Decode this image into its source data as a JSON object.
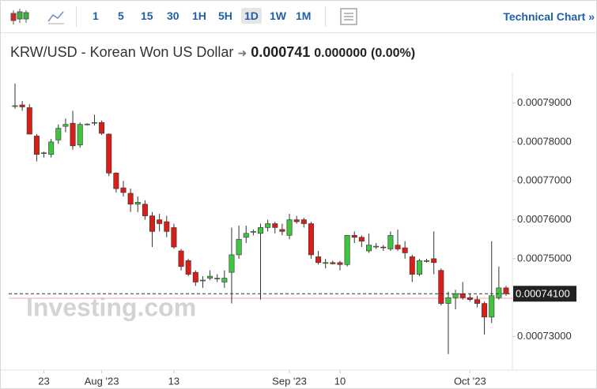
{
  "toolbar": {
    "intervals": [
      "1",
      "5",
      "15",
      "30",
      "1H",
      "5H",
      "1D",
      "1W",
      "1M"
    ],
    "technical_chart": "Technical Chart »"
  },
  "header": {
    "instrument": "KRW/USD - Korean Won US Dollar",
    "price": "0.000741",
    "change": "0.000000",
    "change_percent": "(0.00%)"
  },
  "chart_data": {
    "type": "candlestick",
    "watermark": "Investing.com",
    "categories": [
      null,
      null,
      null,
      null,
      "23",
      null,
      null,
      null,
      null,
      null,
      null,
      null,
      "Aug '23",
      null,
      null,
      null,
      null,
      null,
      null,
      null,
      null,
      null,
      "13",
      null,
      null,
      null,
      null,
      null,
      null,
      null,
      null,
      null,
      null,
      null,
      null,
      null,
      null,
      null,
      "Sep '23",
      null,
      null,
      null,
      null,
      null,
      null,
      "10",
      null,
      null,
      null,
      null,
      null,
      null,
      null,
      null,
      null,
      null,
      null,
      null,
      null,
      null,
      null,
      null,
      null,
      "Oct '23",
      null,
      null,
      null,
      null,
      null
    ],
    "open": [
      0.0007893,
      0.0007895,
      0.0007888,
      0.0007815,
      0.000777,
      0.0007768,
      0.0007805,
      0.000784,
      0.0007848,
      0.0007792,
      0.0007846,
      0.0007848,
      0.000785,
      0.000782,
      0.000772,
      0.0007682,
      0.0007668,
      0.000764,
      0.000764,
      0.000761,
      0.00076,
      0.0007595,
      0.000758,
      0.000752,
      0.0007495,
      0.0007465,
      0.0007445,
      0.000745,
      0.000745,
      0.000744,
      0.0007465,
      0.000751,
      0.0007555,
      0.000757,
      0.0007565,
      0.000758,
      0.000759,
      0.0007575,
      0.000756,
      0.00076,
      0.00076,
      0.000759,
      0.0007505,
      0.0007488,
      0.000749,
      0.000749,
      0.0007485,
      0.000756,
      0.0007555,
      0.000752,
      0.000753,
      0.000753,
      0.0007525,
      0.0007535,
      0.0007528,
      0.0007505,
      0.000746,
      0.0007495,
      0.00075,
      0.000747,
      0.0007385,
      0.00074,
      0.000741,
      0.00074,
      0.0007395,
      0.0007385,
      0.000735,
      0.00074,
      0.0007425
    ],
    "high": [
      0.000795,
      0.0007905,
      0.0007897,
      0.000782,
      0.0007775,
      0.0007808,
      0.0007845,
      0.000786,
      0.000788,
      0.000785,
      0.0007848,
      0.000787,
      0.0007855,
      0.0007822,
      0.0007722,
      0.00077,
      0.000768,
      0.000766,
      0.000765,
      0.000762,
      0.0007615,
      0.000761,
      0.000759,
      0.0007525,
      0.00075,
      0.000747,
      0.0007455,
      0.000747,
      0.000746,
      0.000747,
      0.000758,
      0.0007585,
      0.0007585,
      0.0007575,
      0.000759,
      0.00076,
      0.0007595,
      0.000759,
      0.0007615,
      0.000761,
      0.0007605,
      0.0007595,
      0.000752,
      0.00075,
      0.0007495,
      0.0007495,
      0.000756,
      0.000757,
      0.000756,
      0.0007565,
      0.000754,
      0.0007535,
      0.000757,
      0.0007575,
      0.0007545,
      0.000751,
      0.00075,
      0.00075,
      0.000757,
      0.0007475,
      0.0007415,
      0.000742,
      0.000744,
      0.000741,
      0.0007405,
      0.000739,
      0.0007545,
      0.000748,
      0.000743
    ],
    "low": [
      0.0007885,
      0.000788,
      0.0007825,
      0.000775,
      0.000776,
      0.000776,
      0.0007795,
      0.0007825,
      0.000778,
      0.0007785,
      0.0007842,
      0.0007842,
      0.0007818,
      0.0007712,
      0.000767,
      0.000766,
      0.000762,
      0.000762,
      0.00076,
      0.000753,
      0.000757,
      0.0007555,
      0.0007525,
      0.000747,
      0.0007455,
      0.000743,
      0.0007425,
      0.0007445,
      0.000744,
      0.0007425,
      0.0007385,
      0.00075,
      0.000754,
      0.000756,
      0.0007395,
      0.000757,
      0.0007565,
      0.000756,
      0.000755,
      0.000759,
      0.000758,
      0.00075,
      0.0007485,
      0.0007475,
      0.0007485,
      0.000747,
      0.000748,
      0.000754,
      0.000753,
      0.0007515,
      0.0007525,
      0.000752,
      0.000752,
      0.000752,
      0.00075,
      0.000744,
      0.0007455,
      0.000749,
      0.000746,
      0.000738,
      0.0007255,
      0.000737,
      0.0007395,
      0.000739,
      0.0007375,
      0.0007305,
      0.0007335,
      0.0007395,
      0.0007405
    ],
    "close": [
      0.0007893,
      0.000789,
      0.000782,
      0.0007768,
      0.0007772,
      0.00078,
      0.0007835,
      0.0007845,
      0.000779,
      0.0007845,
      0.0007846,
      0.000785,
      0.0007822,
      0.000772,
      0.000768,
      0.000767,
      0.000764,
      0.0007645,
      0.000761,
      0.000757,
      0.000759,
      0.000757,
      0.000753,
      0.000748,
      0.000746,
      0.000744,
      0.0007445,
      0.0007455,
      0.000745,
      0.000745,
      0.000751,
      0.000755,
      0.0007565,
      0.000757,
      0.000758,
      0.000759,
      0.000758,
      0.000757,
      0.00076,
      0.0007595,
      0.000759,
      0.000751,
      0.000749,
      0.000749,
      0.0007487,
      0.0007485,
      0.000756,
      0.0007555,
      0.0007545,
      0.0007535,
      0.0007532,
      0.0007528,
      0.000756,
      0.0007525,
      0.0007515,
      0.000746,
      0.0007495,
      0.0007495,
      0.000749,
      0.0007385,
      0.00074,
      0.000741,
      0.00074,
      0.0007395,
      0.0007385,
      0.000735,
      0.0007405,
      0.0007425,
      0.000741
    ],
    "up_color": "#3ec43e",
    "down_color": "#d91e18",
    "last_price": {
      "value": 0.000741,
      "label": "0.00074100"
    },
    "ylim": [
      0.000722,
      0.000797
    ],
    "yticks": [
      {
        "value": 0.00073,
        "label": "0.00073000"
      },
      {
        "value": 0.00075,
        "label": "0.00075000"
      },
      {
        "value": 0.00076,
        "label": "0.00076000"
      },
      {
        "value": 0.00077,
        "label": "0.00077000"
      },
      {
        "value": 0.00078,
        "label": "0.00078000"
      },
      {
        "value": 0.00079,
        "label": "0.00079000"
      }
    ],
    "grid": false
  }
}
